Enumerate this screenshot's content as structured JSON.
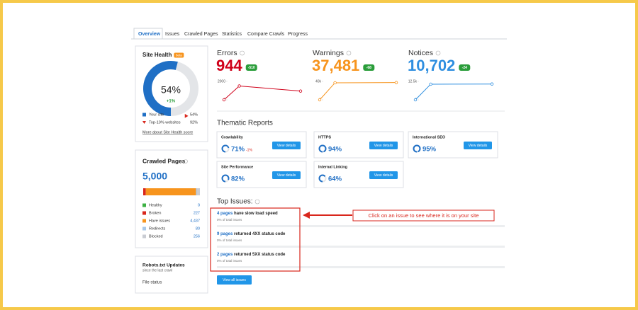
{
  "tabs": [
    "Overview",
    "Issues",
    "Crawled Pages",
    "Statistics",
    "Compare Crawls",
    "Progress"
  ],
  "site_health": {
    "title": "Site Health",
    "badge": "beta",
    "score": {
      "value": 54,
      "label": "54%"
    },
    "change": "+1%",
    "legend": [
      {
        "name": "Your site",
        "value": 54,
        "label": "54%",
        "color": "#1f6fc5"
      },
      {
        "name": "Top-10% websites",
        "value": 92,
        "label": "92%",
        "color": "#d9261c"
      }
    ],
    "link": "More about Site Health score"
  },
  "crawled_pages": {
    "title": "Crawled Pages",
    "total": {
      "value": 5000,
      "label": "5,000"
    },
    "names": [
      "Healthy",
      "Broken",
      "Have issues",
      "Redirects",
      "Blocked"
    ],
    "values": [
      0,
      227,
      4437,
      80,
      256
    ],
    "value_labels": [
      "0",
      "227",
      "4,437",
      "80",
      "256"
    ],
    "colors": [
      "#3cb043",
      "#d9261c",
      "#f7941d",
      "#a8c8e8",
      "#c9ccd3"
    ]
  },
  "robots": {
    "title": "Robots.txt Updates",
    "subtitle": "since the last crawl",
    "file_status": "File status"
  },
  "metrics": [
    {
      "title": "Errors",
      "value": "944",
      "change": "-510",
      "color": "#d0021b",
      "sparkline": {
        "values": [
          0,
          1500,
          950
        ],
        "ylim": [
          0,
          2000
        ],
        "yticks": [
          0,
          2000
        ]
      }
    },
    {
      "title": "Warnings",
      "value": "37,481",
      "change": "-68",
      "color": "#f7941d",
      "sparkline": {
        "values": [
          0,
          37000,
          37481
        ],
        "ylim": [
          0,
          40000
        ],
        "yticks": [
          0,
          {
            "value": 40000,
            "label": "40k"
          }
        ]
      }
    },
    {
      "title": "Notices",
      "value": "10,702",
      "change": "-24",
      "color": "#2f8fe0",
      "sparkline": {
        "values": [
          0,
          10600,
          10702
        ],
        "ylim": [
          0,
          12500
        ],
        "yticks": [
          0,
          {
            "value": 12500,
            "label": "12.5k"
          }
        ]
      }
    }
  ],
  "thematic": {
    "title": "Thematic Reports",
    "button": "View details",
    "reports": [
      {
        "name": "Crawlability",
        "score": {
          "value": 71,
          "label": "71%"
        },
        "change": "-1%"
      },
      {
        "name": "HTTPS",
        "score": {
          "value": 94,
          "label": "94%"
        }
      },
      {
        "name": "International SEO",
        "score": {
          "value": 95,
          "label": "95%"
        }
      },
      {
        "name": "Site Performance",
        "score": {
          "value": 82,
          "label": "82%"
        }
      },
      {
        "name": "Internal Linking",
        "score": {
          "value": 64,
          "label": "64%"
        }
      }
    ]
  },
  "top_issues": {
    "title": "Top Issues:",
    "button": "View all issues",
    "callout": "Click on an issue to see where it is on your site",
    "items": [
      {
        "count": "4 pages",
        "text": "have slow load speed",
        "share": "0% of total issues"
      },
      {
        "count": "9 pages",
        "text": "returned 4XX status code",
        "share": "0% of total issues"
      },
      {
        "count": "2 pages",
        "text": "returned 5XX status code",
        "share": "0% of total issues"
      }
    ]
  }
}
